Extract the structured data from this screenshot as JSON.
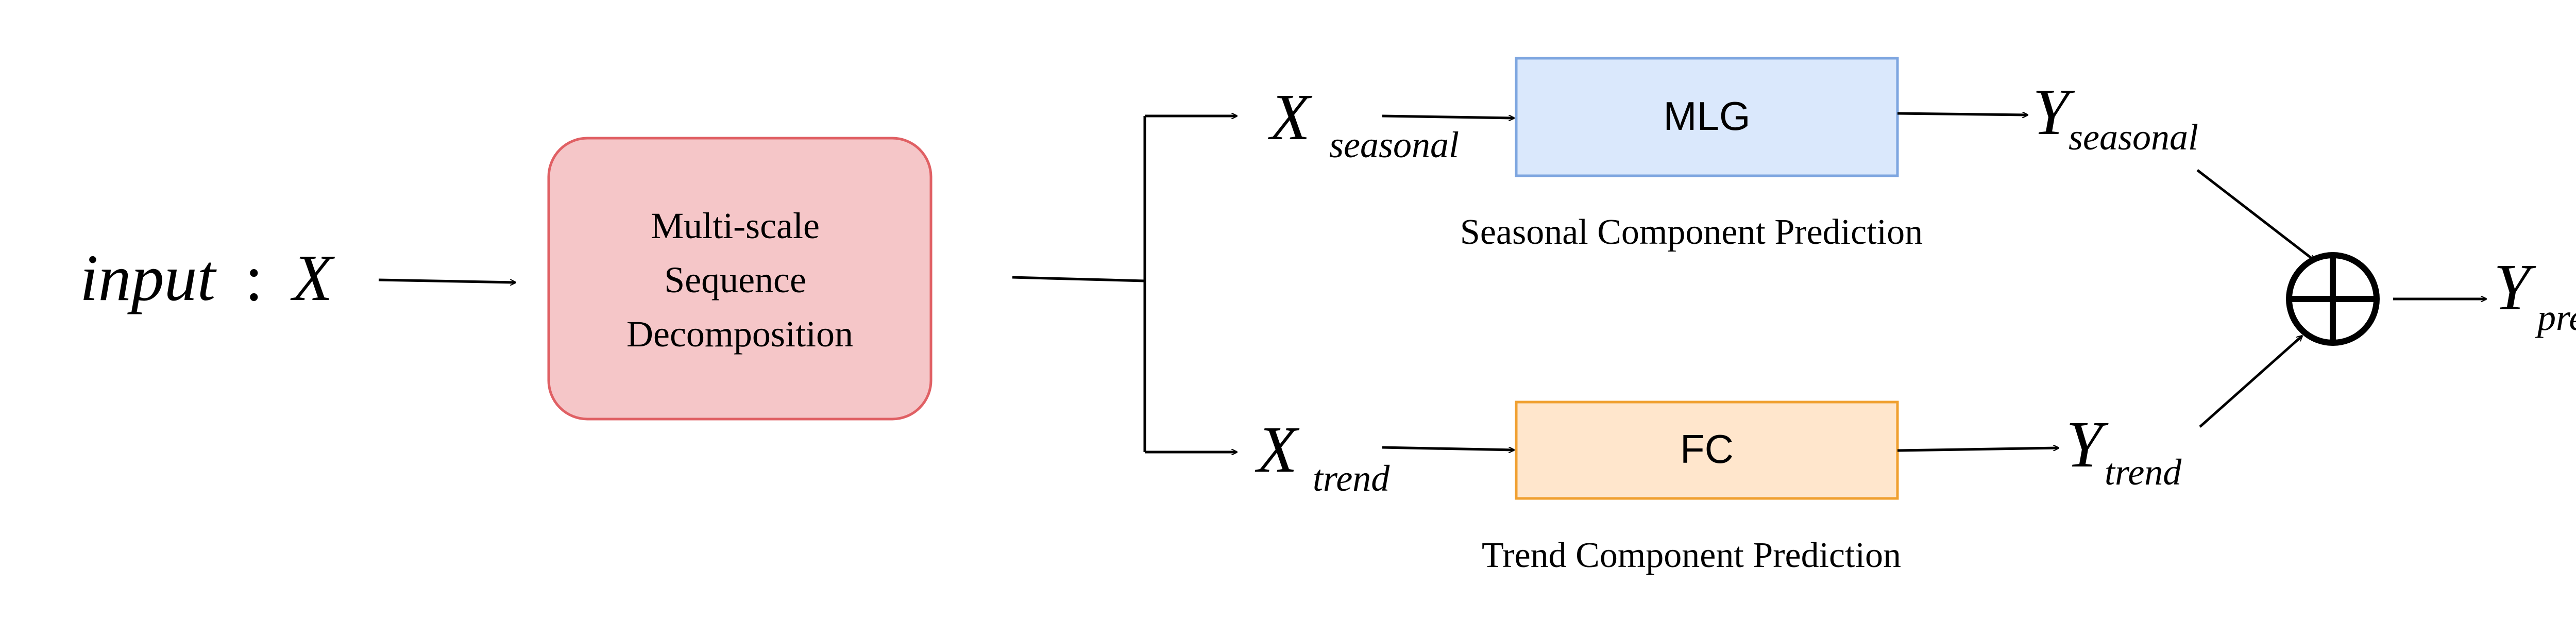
{
  "input": {
    "main": "input",
    "sep": ":",
    "var": "X"
  },
  "decomposition_box": {
    "lines": [
      "Multi-scale",
      "Sequence",
      "Decomposition"
    ],
    "fill": "#f5c6c8",
    "stroke": "#e06064"
  },
  "seasonal": {
    "x_main": "X",
    "x_sub": "seasonal",
    "block_label": "MLG",
    "block_fill": "#dae8fc",
    "block_stroke": "#7ea6e0",
    "caption": "Seasonal Component Prediction",
    "y_main": "Y",
    "y_sub": "seasonal"
  },
  "trend": {
    "x_main": "X",
    "x_sub": "trend",
    "block_label": "FC",
    "block_fill": "#ffe6cc",
    "block_stroke": "#f0a030",
    "caption": "Trend Component Prediction",
    "y_main": "Y",
    "y_sub": "trend"
  },
  "sum": {
    "icon": "circle-plus"
  },
  "output": {
    "main": "Y",
    "sub": "pred"
  }
}
